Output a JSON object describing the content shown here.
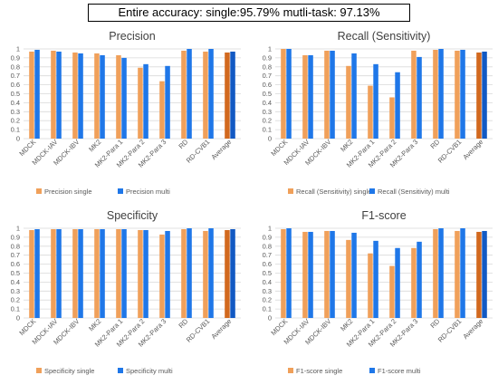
{
  "headline": "Entire accuracy: single:95.79%  mutli-task: 97.13%",
  "colors": {
    "single": "#F0A05A",
    "multi": "#1F77E8",
    "avg_single": "#D2691E",
    "avg_multi": "#1259C3"
  },
  "chart_data": [
    {
      "type": "bar",
      "title": "Precision",
      "categories": [
        "MDCK",
        "MDCK-IAV",
        "MDCK-IBV",
        "MK2",
        "MK2-Para 1",
        "MK2-Para 2",
        "MK2-Para 3",
        "RD",
        "RD-CVB1",
        "Average"
      ],
      "series": [
        {
          "name": "Precision single",
          "values": [
            0.97,
            0.98,
            0.96,
            0.95,
            0.93,
            0.79,
            0.64,
            0.98,
            0.97,
            0.96
          ]
        },
        {
          "name": "Precision multi",
          "values": [
            0.99,
            0.97,
            0.95,
            0.93,
            0.9,
            0.83,
            0.81,
            1.0,
            1.0,
            0.97
          ]
        }
      ],
      "ylim": [
        0,
        1
      ],
      "yticks": [
        "0",
        "0.1",
        "0.2",
        "0.3",
        "0.4",
        "0.5",
        "0.6",
        "0.7",
        "0.8",
        "0.9",
        "1"
      ],
      "grid": true,
      "legend_position": "bottom"
    },
    {
      "type": "bar",
      "title": "Recall (Sensitivity)",
      "categories": [
        "MDCK",
        "MDCK-IAV",
        "MDCK-IBV",
        "MK2",
        "MK2-Para 1",
        "MK2-Para 2",
        "MK2-Para 3",
        "RD",
        "RD-CVB1",
        "Average"
      ],
      "series": [
        {
          "name": "Recall (Sensitivity) single",
          "values": [
            1.0,
            0.93,
            0.98,
            0.81,
            0.59,
            0.46,
            0.98,
            0.99,
            0.98,
            0.96
          ]
        },
        {
          "name": "Recall (Sensitivity) multi",
          "values": [
            1.0,
            0.93,
            0.98,
            0.95,
            0.83,
            0.74,
            0.91,
            1.0,
            0.99,
            0.97
          ]
        }
      ],
      "ylim": [
        0,
        1
      ],
      "yticks": [
        "0",
        "0.1",
        "0.2",
        "0.3",
        "0.4",
        "0.5",
        "0.6",
        "0.7",
        "0.8",
        "0.9",
        "1"
      ],
      "grid": true,
      "legend_position": "bottom"
    },
    {
      "type": "bar",
      "title": "Specificity",
      "categories": [
        "MDCK",
        "MDCK-IAV",
        "MDCK-IBV",
        "MK2",
        "MK2-Para 1",
        "MK2-Para 2",
        "MK2-Para 3",
        "RD",
        "RD-CVB1",
        "Average"
      ],
      "series": [
        {
          "name": "Specificity single",
          "values": [
            0.98,
            0.99,
            0.99,
            0.99,
            0.99,
            0.98,
            0.93,
            0.99,
            0.97,
            0.98
          ]
        },
        {
          "name": "Specificity multi",
          "values": [
            0.99,
            0.99,
            0.99,
            0.99,
            0.99,
            0.98,
            0.97,
            1.0,
            1.0,
            0.99
          ]
        }
      ],
      "ylim": [
        0,
        1
      ],
      "yticks": [
        "0",
        "0.1",
        "0.2",
        "0.3",
        "0.4",
        "0.5",
        "0.6",
        "0.7",
        "0.8",
        "0.9",
        "1"
      ],
      "grid": true,
      "legend_position": "bottom"
    },
    {
      "type": "bar",
      "title": "F1-score",
      "categories": [
        "MDCK",
        "MDCK-IAV",
        "MDCK-IBV",
        "MK2",
        "MK2-Para 1",
        "MK2-Para 2",
        "MK2-Para 3",
        "RD",
        "RD-CVB1",
        "Average"
      ],
      "series": [
        {
          "name": "F1-score single",
          "values": [
            0.99,
            0.96,
            0.97,
            0.87,
            0.72,
            0.58,
            0.78,
            0.99,
            0.97,
            0.96
          ]
        },
        {
          "name": "F1-score multi",
          "values": [
            1.0,
            0.96,
            0.97,
            0.95,
            0.86,
            0.78,
            0.85,
            1.0,
            1.0,
            0.97
          ]
        }
      ],
      "ylim": [
        0,
        1
      ],
      "yticks": [
        "0",
        "0.1",
        "0.2",
        "0.3",
        "0.4",
        "0.5",
        "0.6",
        "0.7",
        "0.8",
        "0.9",
        "1"
      ],
      "grid": true,
      "legend_position": "bottom"
    }
  ]
}
